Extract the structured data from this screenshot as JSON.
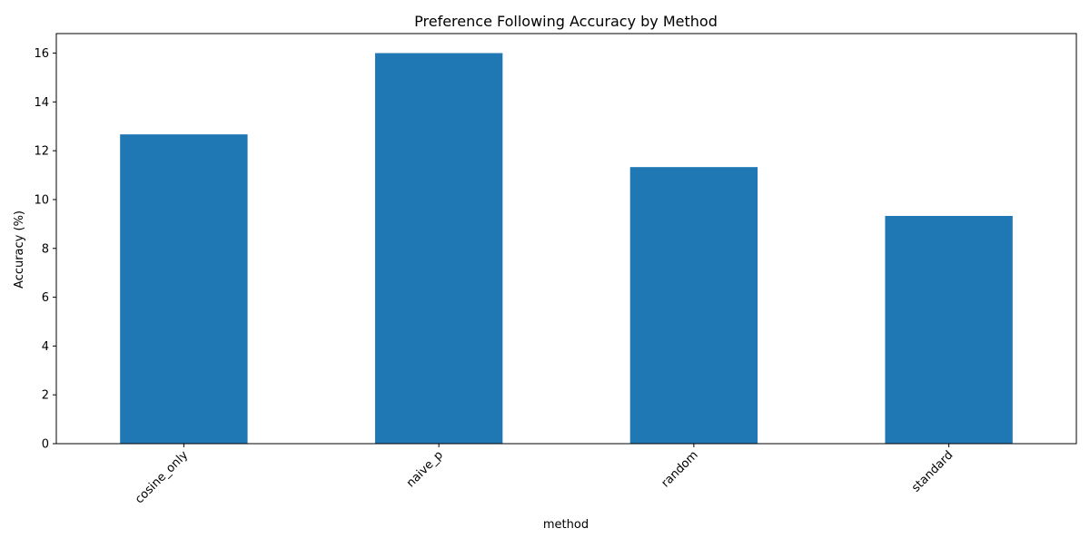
{
  "chart_data": {
    "type": "bar",
    "title": "Preference Following Accuracy by Method",
    "xlabel": "method",
    "ylabel": "Accuracy (%)",
    "categories": [
      "cosine_only",
      "naive_p",
      "random",
      "standard"
    ],
    "values": [
      12.67,
      16.0,
      11.33,
      9.33
    ],
    "ylim": [
      0,
      16.8
    ],
    "yticks": [
      0,
      2,
      4,
      6,
      8,
      10,
      12,
      14,
      16
    ],
    "xtick_rotation_deg": 45,
    "bar_color": "#1f77b4",
    "grid": false,
    "legend": "none"
  }
}
